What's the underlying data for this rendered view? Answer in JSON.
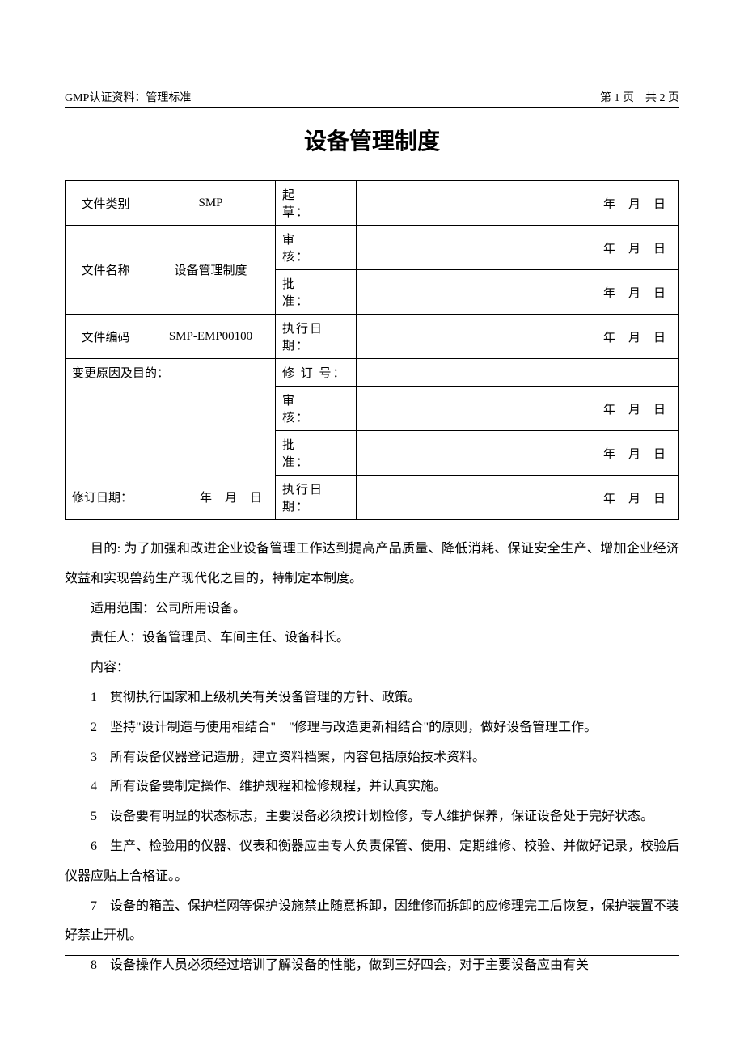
{
  "header": {
    "left": "GMP认证资料：管理标准",
    "page_now": "1",
    "page_total": "2",
    "page_prefix": "第",
    "page_mid": "页",
    "page_totalprefix": "共",
    "page_suffix": "页"
  },
  "title": "设备管理制度",
  "meta": {
    "labels": {
      "type": "文件类别",
      "name": "文件名称",
      "code": "文件编码",
      "change": "变更原因及目的：",
      "revdate": "修订日期：",
      "draft": "起　　草：",
      "review": "审　　核：",
      "approve": "批　　准：",
      "exec": "执行日期：",
      "revno": "修 订 号："
    },
    "values": {
      "type": "SMP",
      "name": "设备管理制度",
      "code": "SMP-EMP00100"
    },
    "date_units": {
      "y": "年",
      "m": "月",
      "d": "日"
    }
  },
  "body": {
    "purpose_label": "目的:",
    "purpose": "为了加强和改进企业设备管理工作达到提高产品质量、降低消耗、保证安全生产、增加企业经济效益和实现兽药生产现代化之目的，特制定本制度。",
    "scope_label": "适用范围：",
    "scope": "公司所用设备。",
    "resp_label": "责任人：",
    "resp": "设备管理员、车间主任、设备科长。",
    "content_label": "内容：",
    "items": {
      "i1": "1　贯彻执行国家和上级机关有关设备管理的方针、政策。",
      "i2": "2　坚持\"设计制造与使用相结合\"　\"修理与改造更新相结合\"的原则，做好设备管理工作。",
      "i3": "3　所有设备仪器登记造册，建立资料档案，内容包括原始技术资料。",
      "i4": "4　所有设备要制定操作、维护规程和检修规程，并认真实施。",
      "i5": "5　设备要有明显的状态标志，主要设备必须按计划检修，专人维护保养，保证设备处于完好状态。",
      "i6": "6　生产、检验用的仪器、仪表和衡器应由专人负责保管、使用、定期维修、校验、并做好记录，校验后仪器应贴上合格证。。",
      "i7": "7　设备的箱盖、保护栏网等保护设施禁止随意拆卸，因维修而拆卸的应修理完工后恢复，保护装置不装好禁止开机。",
      "i8": "8　设备操作人员必须经过培训了解设备的性能，做到三好四会，对于主要设备应由有关"
    }
  }
}
